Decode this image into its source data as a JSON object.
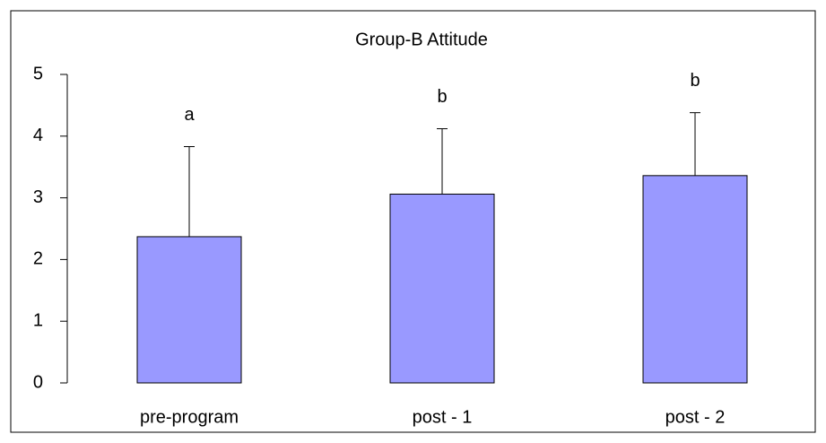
{
  "chart_data": {
    "type": "bar",
    "title": "Group-B Attitude",
    "categories": [
      "pre-program",
      "post - 1",
      "post - 2"
    ],
    "values": [
      2.37,
      3.06,
      3.36
    ],
    "errors": [
      1.46,
      1.06,
      1.02
    ],
    "annotations": [
      "a",
      "b",
      "b"
    ],
    "color": "#9999ff",
    "ylim": [
      0,
      5
    ],
    "yticks": [
      0,
      1,
      2,
      3,
      4,
      5
    ],
    "grid": false
  }
}
